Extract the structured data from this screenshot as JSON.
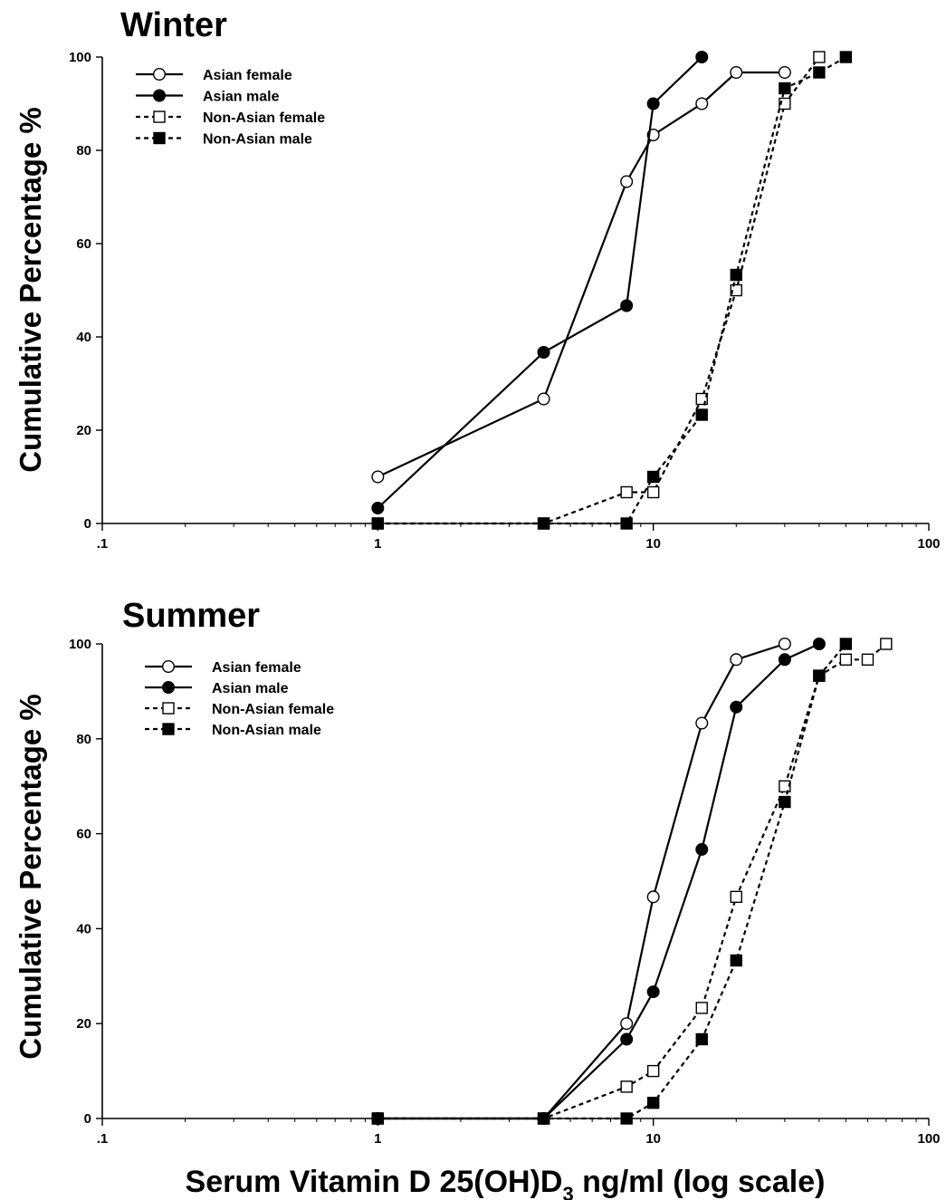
{
  "figure": {
    "xlabel_main": "Serum Vitamin D 25(OH)D",
    "xlabel_sub": "3",
    "xlabel_tail": " ng/ml (log scale)"
  },
  "chart_data": [
    {
      "type": "line",
      "title": "Winter",
      "ylabel": "Cumulative Percentage %",
      "xscale": "log",
      "xlim": [
        0.1,
        100
      ],
      "ylim": [
        0,
        100
      ],
      "xticks": [
        0.1,
        1,
        10,
        100
      ],
      "xtick_labels": [
        ".1",
        "1",
        "10",
        "100"
      ],
      "yticks": [
        0,
        20,
        40,
        60,
        80,
        100
      ],
      "ytick_labels": [
        "0",
        "20",
        "40",
        "60",
        "80",
        "100"
      ],
      "grid": false,
      "legend_position": "top-left",
      "series": [
        {
          "name": "Asian female",
          "marker": "open-circle",
          "line": "solid",
          "x": [
            1,
            4,
            8,
            10,
            15,
            20,
            30
          ],
          "y": [
            10,
            26.7,
            73.3,
            83.3,
            90,
            96.7,
            96.7
          ]
        },
        {
          "name": "Asian male",
          "marker": "filled-circle",
          "line": "solid",
          "x": [
            1,
            4,
            8,
            10,
            15
          ],
          "y": [
            3.3,
            36.7,
            46.7,
            90,
            100
          ]
        },
        {
          "name": "Non-Asian female",
          "marker": "open-square",
          "line": "dashed",
          "x": [
            1,
            4,
            8,
            10,
            15,
            20,
            30,
            40
          ],
          "y": [
            0,
            0,
            6.7,
            6.7,
            26.7,
            50,
            90,
            100
          ]
        },
        {
          "name": "Non-Asian male",
          "marker": "filled-square",
          "line": "dashed",
          "x": [
            1,
            4,
            8,
            10,
            15,
            20,
            30,
            40,
            50
          ],
          "y": [
            0,
            0,
            0,
            10,
            23.3,
            53.3,
            93.3,
            96.7,
            100
          ]
        }
      ]
    },
    {
      "type": "line",
      "title": "Summer",
      "ylabel": "Cumulative Percentage %",
      "xscale": "log",
      "xlim": [
        0.1,
        100
      ],
      "ylim": [
        0,
        100
      ],
      "xticks": [
        0.1,
        1,
        10,
        100
      ],
      "xtick_labels": [
        ".1",
        "1",
        "10",
        "100"
      ],
      "yticks": [
        0,
        20,
        40,
        60,
        80,
        100
      ],
      "ytick_labels": [
        "0",
        "20",
        "40",
        "60",
        "80",
        "100"
      ],
      "grid": false,
      "legend_position": "top-left",
      "series": [
        {
          "name": "Asian female",
          "marker": "open-circle",
          "line": "solid",
          "x": [
            1,
            4,
            8,
            10,
            15,
            20,
            30
          ],
          "y": [
            0,
            0,
            20,
            46.7,
            83.3,
            96.7,
            100
          ]
        },
        {
          "name": "Asian male",
          "marker": "filled-circle",
          "line": "solid",
          "x": [
            1,
            4,
            8,
            10,
            15,
            20,
            30,
            40
          ],
          "y": [
            0,
            0,
            16.7,
            26.7,
            56.7,
            86.7,
            96.7,
            100
          ]
        },
        {
          "name": "Non-Asian female",
          "marker": "open-square",
          "line": "dashed",
          "x": [
            1,
            4,
            8,
            10,
            15,
            20,
            30,
            40,
            50,
            60,
            70
          ],
          "y": [
            0,
            0,
            6.7,
            10,
            23.3,
            46.7,
            70,
            93.3,
            96.7,
            96.7,
            100
          ]
        },
        {
          "name": "Non-Asian male",
          "marker": "filled-square",
          "line": "dashed",
          "x": [
            1,
            4,
            8,
            10,
            15,
            20,
            30,
            40,
            50
          ],
          "y": [
            0,
            0,
            0,
            3.3,
            16.7,
            33.3,
            66.7,
            93.3,
            100
          ]
        }
      ]
    }
  ]
}
